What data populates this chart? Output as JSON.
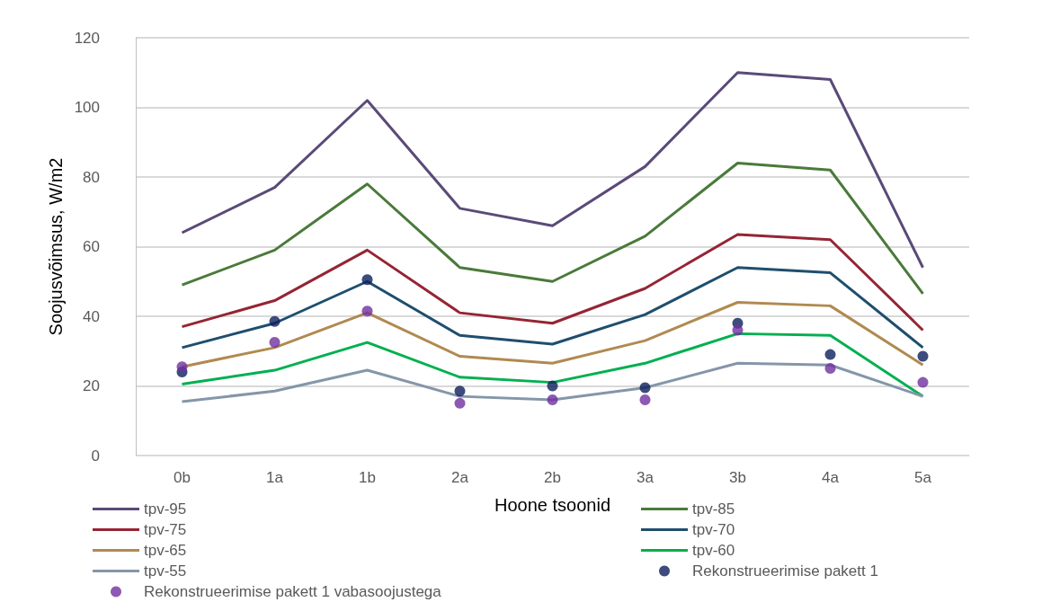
{
  "chart_data": {
    "type": "line",
    "xlabel": "Hoone tsoonid",
    "ylabel": "Soojusvõimsus, W/m2",
    "categories": [
      "0b",
      "1a",
      "1b",
      "2a",
      "2b",
      "3a",
      "3b",
      "4a",
      "5a"
    ],
    "ylim": [
      0,
      120
    ],
    "yticks": [
      0,
      20,
      40,
      60,
      80,
      100,
      120
    ],
    "grid": "y",
    "legend": "bottom",
    "marker": "none",
    "series": [
      {
        "name": "tpv-95",
        "color": "#5b4a78",
        "values": [
          64,
          77,
          102,
          71,
          66,
          83,
          110,
          108,
          54
        ]
      },
      {
        "name": "tpv-85",
        "color": "#4a7a3a",
        "values": [
          49,
          59,
          78,
          54,
          50,
          63,
          84,
          82,
          46.5
        ]
      },
      {
        "name": "tpv-75",
        "color": "#952534",
        "values": [
          37,
          44.5,
          59,
          41,
          38,
          48,
          63.5,
          62,
          36
        ]
      },
      {
        "name": "tpv-70",
        "color": "#1f4e6e",
        "values": [
          31,
          38,
          50,
          34.5,
          32,
          40.5,
          54,
          52.5,
          31
        ]
      },
      {
        "name": "tpv-65",
        "color": "#b08a50",
        "values": [
          25.5,
          31,
          41,
          28.5,
          26.5,
          33,
          44,
          43,
          26
        ]
      },
      {
        "name": "tpv-60",
        "color": "#00b050",
        "values": [
          20.5,
          24.5,
          32.5,
          22.5,
          21,
          26.5,
          35,
          34.5,
          17
        ]
      },
      {
        "name": "tpv-55",
        "color": "#8496a9",
        "values": [
          15.5,
          18.5,
          24.5,
          17,
          16,
          19.5,
          26.5,
          26,
          17
        ]
      },
      {
        "name": "Rekonstrueerimise pakett 1",
        "type": "scatter",
        "marker": "circle",
        "color": "#0d1f5c",
        "values": [
          24,
          38.5,
          50.5,
          18.5,
          20,
          19.5,
          38,
          29,
          28.5
        ]
      },
      {
        "name": "Rekonstrueerimise pakett 1 vabasoojustega",
        "type": "scatter",
        "marker": "circle",
        "color": "#7030a0",
        "values": [
          25.5,
          32.5,
          41.5,
          15,
          16,
          16,
          36,
          25,
          21
        ]
      }
    ]
  }
}
